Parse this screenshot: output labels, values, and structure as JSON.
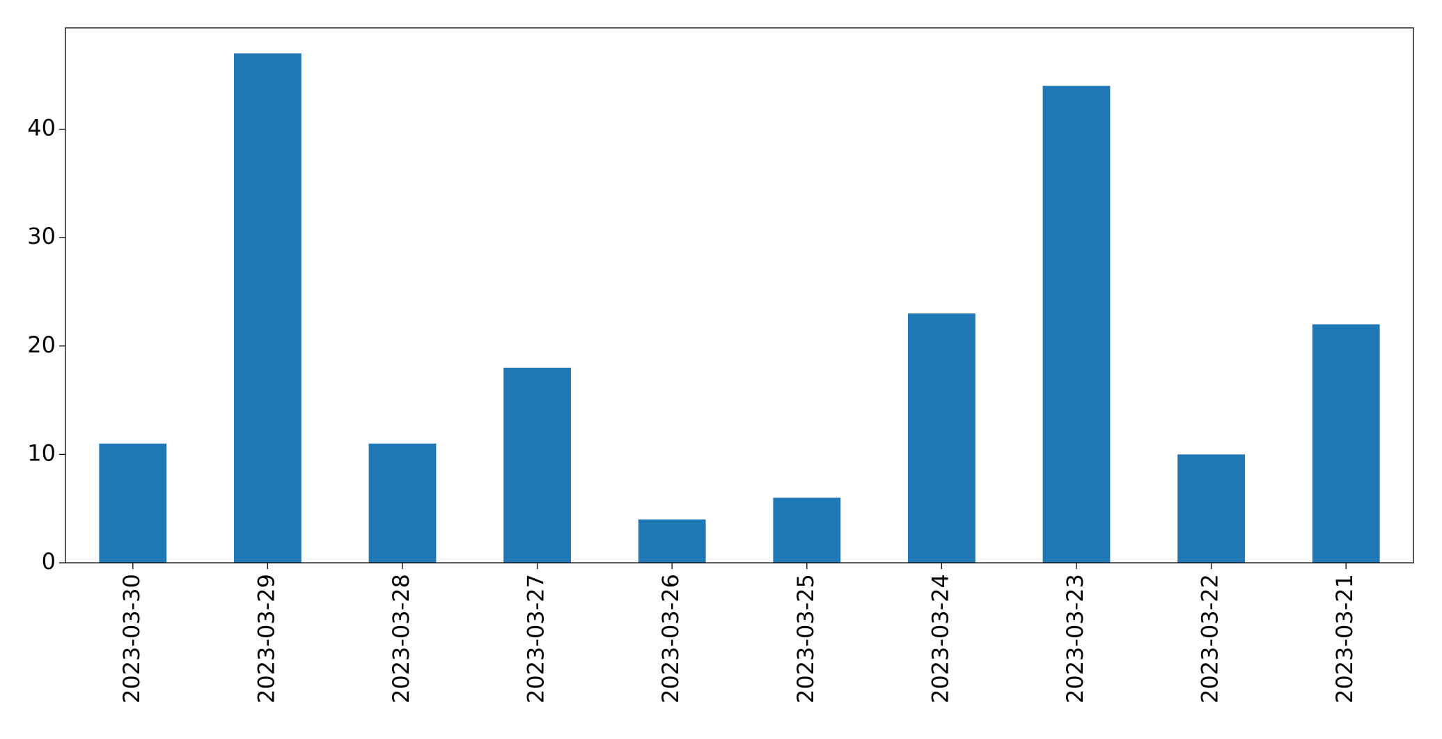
{
  "chart_data": {
    "type": "bar",
    "categories": [
      "2023-03-30",
      "2023-03-29",
      "2023-03-28",
      "2023-03-27",
      "2023-03-26",
      "2023-03-25",
      "2023-03-24",
      "2023-03-23",
      "2023-03-22",
      "2023-03-21"
    ],
    "values": [
      11,
      47,
      11,
      18,
      4,
      6,
      23,
      44,
      10,
      22
    ],
    "color": "#1f77b4",
    "ylim": [
      0,
      49.35
    ],
    "yticks": [
      0,
      10,
      20,
      30,
      40
    ],
    "grid": false
  }
}
